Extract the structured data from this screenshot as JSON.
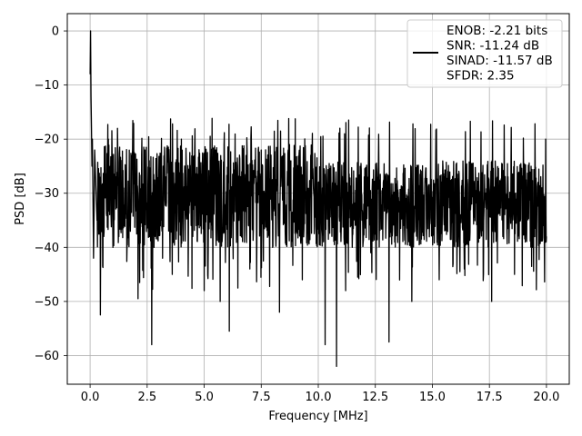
{
  "chart_data": {
    "type": "line",
    "title": "",
    "xlabel": "Frequency [MHz]",
    "ylabel": "PSD [dB]",
    "xlim": [
      -1.0,
      21.0
    ],
    "ylim": [
      -65.3,
      3.2
    ],
    "x_ticks": [
      0.0,
      2.5,
      5.0,
      7.5,
      10.0,
      12.5,
      15.0,
      17.5,
      20.0
    ],
    "x_tick_labels": [
      "0.0",
      "2.5",
      "5.0",
      "7.5",
      "10.0",
      "12.5",
      "15.0",
      "17.5",
      "20.0"
    ],
    "y_ticks": [
      0,
      -10,
      -20,
      -30,
      -40,
      -50,
      -60
    ],
    "y_tick_labels": [
      "0",
      "−10",
      "−20",
      "−30",
      "−40",
      "−50",
      "−60"
    ],
    "grid": true,
    "legend_position": "top-right",
    "series": [
      {
        "name": "ENOB: -2.21 bits\nSNR: -11.24 dB\nSINAD: -11.57 dB\nSFDR: 2.35",
        "color": "#000000",
        "x": [
          0.0,
          0.02,
          0.04,
          0.06,
          0.08,
          0.1,
          0.15,
          0.2,
          0.3,
          0.45,
          0.6,
          0.8,
          1.0,
          1.2,
          1.5,
          1.8,
          2.1,
          2.4,
          2.7,
          2.75,
          2.8,
          3.2,
          3.6,
          4.0,
          4.5,
          5.0,
          5.5,
          5.7,
          6.1,
          6.5,
          7.0,
          7.5,
          8.0,
          8.3,
          8.8,
          9.3,
          9.8,
          10.3,
          10.8,
          11.2,
          11.8,
          12.3,
          13.1,
          13.6,
          14.1,
          14.7,
          15.3,
          15.8,
          16.4,
          17.0,
          17.6,
          18.1,
          18.6,
          19.0,
          19.4,
          19.8,
          20.0
        ],
        "values": [
          -8,
          0,
          -12,
          -18,
          -25,
          -20,
          -42,
          -22,
          -35,
          -52.5,
          -38,
          -20,
          -40,
          -18,
          -36,
          -28,
          -49.5,
          -22,
          -58,
          -30,
          -40,
          -25,
          -45,
          -20,
          -38,
          -48,
          -22,
          -50,
          -55.5,
          -30,
          -44,
          -22,
          -40,
          -52,
          -24,
          -46,
          -30,
          -58,
          -62,
          -48,
          -28,
          -41,
          -57.5,
          -30,
          -50,
          -26,
          -46,
          -32,
          -44,
          -28,
          -50,
          -34,
          -45,
          -26,
          -40,
          -29,
          -38
        ]
      }
    ]
  }
}
